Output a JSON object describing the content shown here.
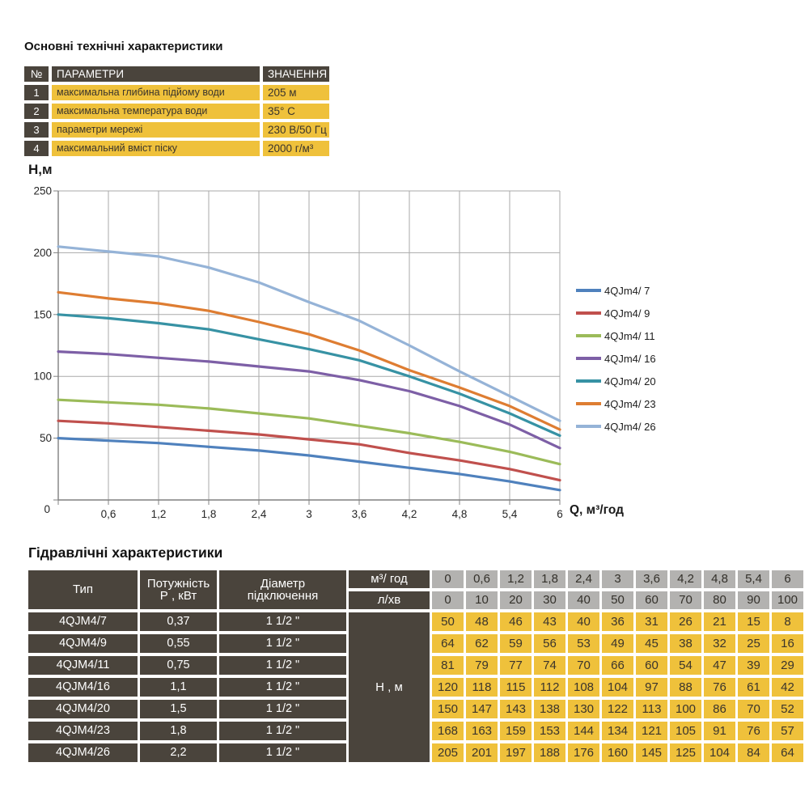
{
  "top_table": {
    "title": "Основні технічні характеристики",
    "headers": {
      "num": "№",
      "param": "ПАРАМЕТРИ",
      "value": "ЗНАЧЕННЯ"
    },
    "rows": [
      {
        "num": "1",
        "param": "максимальна глибина підйому води",
        "value": "205 м"
      },
      {
        "num": "2",
        "param": "максимальна температура води",
        "value": "35° С"
      },
      {
        "num": "3",
        "param": "параметри мережі",
        "value": "230 В/50 Гц"
      },
      {
        "num": "4",
        "param": "максимальний вміст піску",
        "value": "2000 г/м³"
      }
    ]
  },
  "chart": {
    "y_axis_title": "Н,м",
    "x_axis_title": "Q, м³/год"
  },
  "chart_data": {
    "type": "line",
    "title": "",
    "xlabel": "Q, м³/год",
    "ylabel": "Н,м",
    "x": [
      0,
      0.6,
      1.2,
      1.8,
      2.4,
      3,
      3.6,
      4.2,
      4.8,
      5.4,
      6
    ],
    "xtick_labels": [
      "0",
      "0,6",
      "1,2",
      "1,8",
      "2,4",
      "3",
      "3,6",
      "4,2",
      "4,8",
      "5,4",
      "6"
    ],
    "ytick_values": [
      0,
      50,
      100,
      150,
      200,
      250
    ],
    "xlim": [
      0,
      6
    ],
    "ylim": [
      0,
      250
    ],
    "grid": true,
    "legend_position": "right",
    "series": [
      {
        "name": "4QJm4/ 7",
        "color": "#4F81BD",
        "values": [
          50,
          48,
          46,
          43,
          40,
          36,
          31,
          26,
          21,
          15,
          8
        ]
      },
      {
        "name": "4QJm4/ 9",
        "color": "#C0504D",
        "values": [
          64,
          62,
          59,
          56,
          53,
          49,
          45,
          38,
          32,
          25,
          16
        ]
      },
      {
        "name": "4QJm4/ 11",
        "color": "#9BBB59",
        "values": [
          81,
          79,
          77,
          74,
          70,
          66,
          60,
          54,
          47,
          39,
          29
        ]
      },
      {
        "name": "4QJm4/ 16",
        "color": "#7D5FA6",
        "values": [
          120,
          118,
          115,
          112,
          108,
          104,
          97,
          88,
          76,
          61,
          42
        ]
      },
      {
        "name": "4QJm4/ 20",
        "color": "#3792A4",
        "values": [
          150,
          147,
          143,
          138,
          130,
          122,
          113,
          100,
          86,
          70,
          52
        ]
      },
      {
        "name": "4QJm4/ 23",
        "color": "#DE7D32",
        "values": [
          168,
          163,
          159,
          153,
          144,
          134,
          121,
          105,
          91,
          76,
          57
        ]
      },
      {
        "name": "4QJm4/ 26",
        "color": "#95B3D7",
        "values": [
          205,
          201,
          197,
          188,
          176,
          160,
          145,
          125,
          104,
          84,
          64
        ]
      }
    ]
  },
  "bottom_table": {
    "title": "Гідравлічні характеристики",
    "col_headers": {
      "type": "Тип",
      "power_line1": "Потужність",
      "power_line2": "Р , кВт",
      "diameter_line1": "Діаметр",
      "diameter_line2": "підключення",
      "flow_m3": "м³/ год",
      "flow_lmin": "л/хв"
    },
    "flow_m3_values": [
      "0",
      "0,6",
      "1,2",
      "1,8",
      "2,4",
      "3",
      "3,6",
      "4,2",
      "4,8",
      "5,4",
      "6"
    ],
    "flow_lmin_values": [
      "0",
      "10",
      "20",
      "30",
      "40",
      "50",
      "60",
      "70",
      "80",
      "90",
      "100"
    ],
    "head_label": "Н , м",
    "rows": [
      {
        "type": "4QJM4/7",
        "power": "0,37",
        "diameter": "1 1/2 \"",
        "values": [
          50,
          48,
          46,
          43,
          40,
          36,
          31,
          26,
          21,
          15,
          8
        ]
      },
      {
        "type": "4QJM4/9",
        "power": "0,55",
        "diameter": "1 1/2 \"",
        "values": [
          64,
          62,
          59,
          56,
          53,
          49,
          45,
          38,
          32,
          25,
          16
        ]
      },
      {
        "type": "4QJM4/11",
        "power": "0,75",
        "diameter": "1 1/2 \"",
        "values": [
          81,
          79,
          77,
          74,
          70,
          66,
          60,
          54,
          47,
          39,
          29
        ]
      },
      {
        "type": "4QJM4/16",
        "power": "1,1",
        "diameter": "1 1/2 \"",
        "values": [
          120,
          118,
          115,
          112,
          108,
          104,
          97,
          88,
          76,
          61,
          42
        ]
      },
      {
        "type": "4QJM4/20",
        "power": "1,5",
        "diameter": "1 1/2 \"",
        "values": [
          150,
          147,
          143,
          138,
          130,
          122,
          113,
          100,
          86,
          70,
          52
        ]
      },
      {
        "type": "4QJM4/23",
        "power": "1,8",
        "diameter": "1 1/2 \"",
        "values": [
          168,
          163,
          159,
          153,
          144,
          134,
          121,
          105,
          91,
          76,
          57
        ]
      },
      {
        "type": "4QJM4/26",
        "power": "2,2",
        "diameter": "1 1/2 \"",
        "values": [
          205,
          201,
          197,
          188,
          176,
          160,
          145,
          125,
          104,
          84,
          64
        ]
      }
    ]
  },
  "colors": {
    "dark_cell": "#4A443C",
    "yellow_cell": "#EFC13B",
    "gray_cell": "#B3B2B0",
    "text_on_yellow": "#3A342C",
    "grid_line": "#AAAAAA",
    "axis_line": "#808080",
    "tick_text": "#262626"
  }
}
